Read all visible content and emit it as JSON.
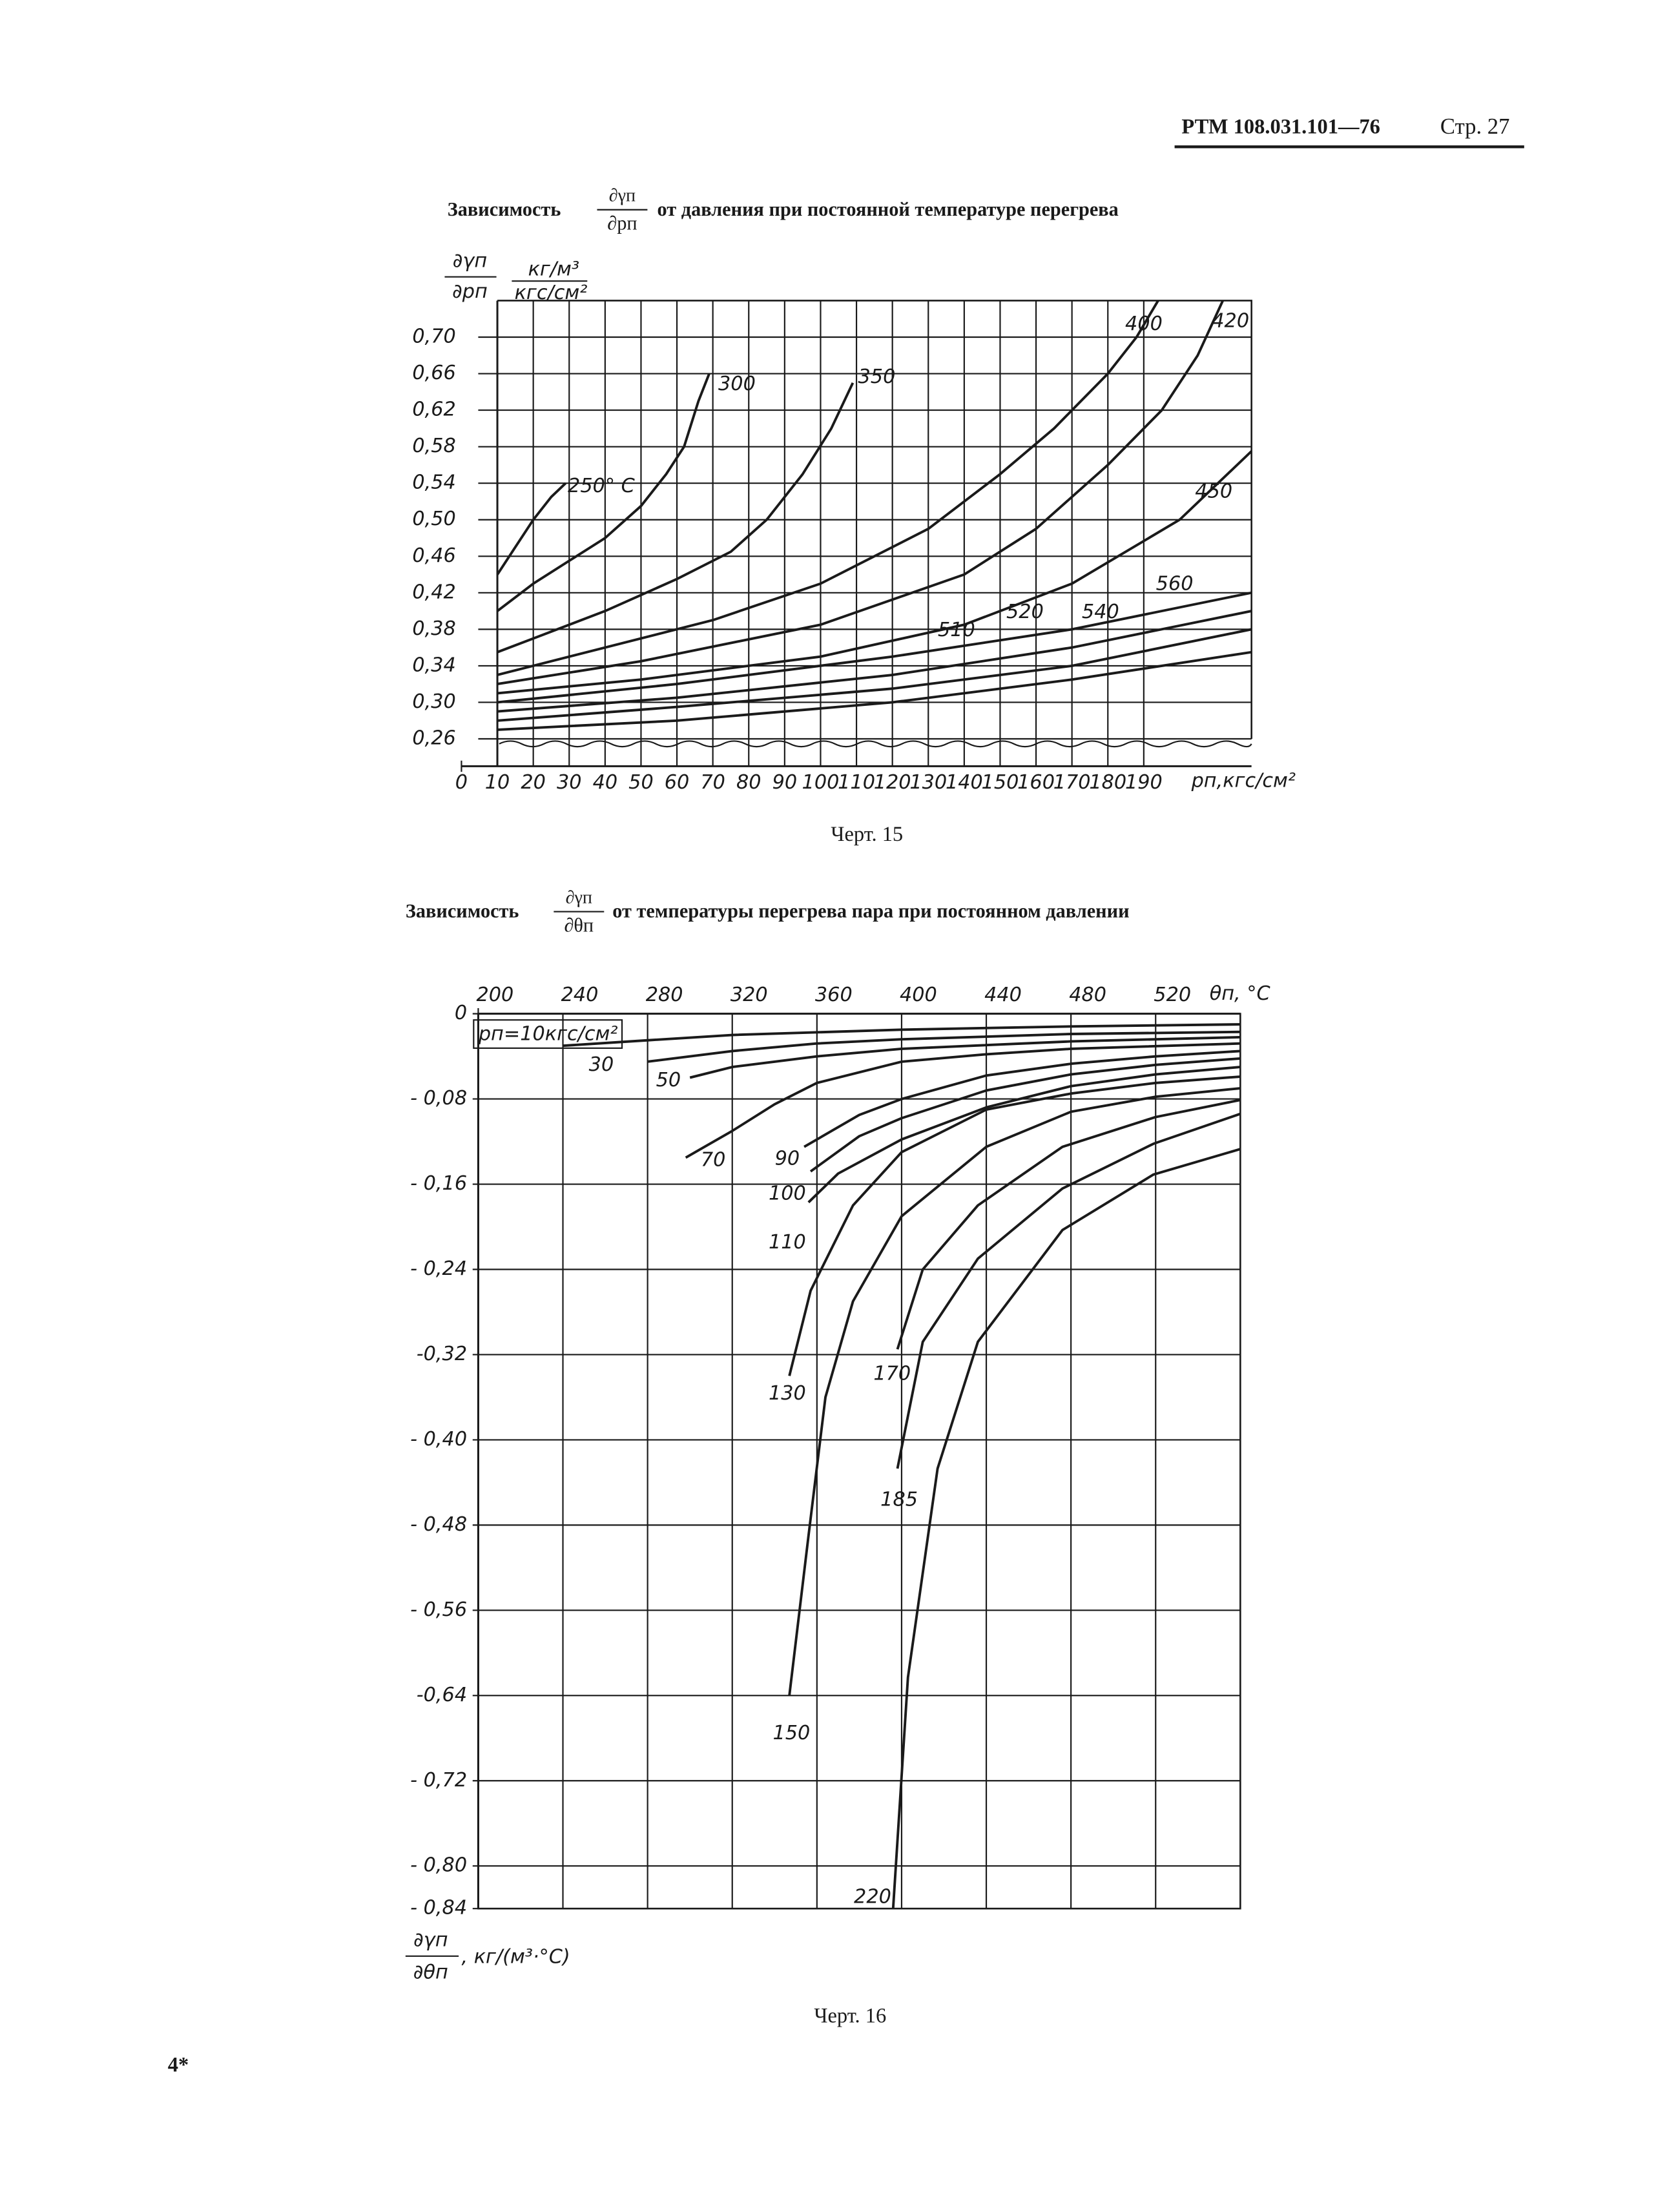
{
  "header": {
    "doc": "РТМ 108.031.101—76",
    "page": "Стр. 27"
  },
  "chart_data": [
    {
      "type": "line",
      "title": {
        "prefix": "Зависимость",
        "numerator": "∂γп",
        "denominator": "∂pп",
        "suffix": "от давления при постоянной температуре перегрева"
      },
      "y_label": {
        "numerator": "∂γп",
        "denominator": "∂pп",
        "unit_numerator": "кг/м³",
        "unit_denominator": "кгс/см²"
      },
      "x_label": "pп,кгс/см²",
      "caption": "Черт. 15",
      "color": "#1a1a1a",
      "grid": true,
      "x_axis_position": "bottom",
      "xlim": [
        0,
        220
      ],
      "xticks": [
        0,
        10,
        20,
        30,
        40,
        50,
        60,
        70,
        80,
        90,
        100,
        110,
        120,
        130,
        140,
        150,
        160,
        170,
        180,
        190
      ],
      "ylim": [
        0.23,
        0.74
      ],
      "yticks": [
        {
          "value": 0.26,
          "label": "0,26"
        },
        {
          "value": 0.3,
          "label": "0,30"
        },
        {
          "value": 0.34,
          "label": "0,34"
        },
        {
          "value": 0.38,
          "label": "0,38"
        },
        {
          "value": 0.42,
          "label": "0,42"
        },
        {
          "value": 0.46,
          "label": "0,46"
        },
        {
          "value": 0.5,
          "label": "0,50"
        },
        {
          "value": 0.54,
          "label": "0,54"
        },
        {
          "value": 0.58,
          "label": "0,58"
        },
        {
          "value": 0.62,
          "label": "0,62"
        },
        {
          "value": 0.66,
          "label": "0,66"
        },
        {
          "value": 0.7,
          "label": "0,70"
        }
      ],
      "series": [
        {
          "name": "250° C",
          "x": [
            10,
            15,
            20,
            25,
            29
          ],
          "values": [
            0.44,
            0.47,
            0.5,
            0.525,
            0.54
          ]
        },
        {
          "name": "300",
          "x": [
            10,
            20,
            30,
            40,
            50,
            57,
            62,
            66,
            69
          ],
          "values": [
            0.4,
            0.43,
            0.455,
            0.48,
            0.515,
            0.55,
            0.58,
            0.63,
            0.66
          ]
        },
        {
          "name": "350",
          "x": [
            10,
            20,
            40,
            60,
            75,
            85,
            95,
            103,
            109
          ],
          "values": [
            0.355,
            0.37,
            0.4,
            0.435,
            0.465,
            0.5,
            0.55,
            0.6,
            0.65
          ]
        },
        {
          "name": "400",
          "x": [
            10,
            40,
            70,
            100,
            130,
            150,
            165,
            180,
            188,
            194
          ],
          "values": [
            0.33,
            0.36,
            0.39,
            0.43,
            0.49,
            0.55,
            0.6,
            0.66,
            0.7,
            0.74
          ]
        },
        {
          "name": "420",
          "x": [
            10,
            50,
            100,
            140,
            160,
            180,
            195,
            205,
            212
          ],
          "values": [
            0.32,
            0.345,
            0.385,
            0.44,
            0.49,
            0.56,
            0.62,
            0.68,
            0.74
          ]
        },
        {
          "name": "450",
          "x": [
            10,
            50,
            100,
            140,
            170,
            200,
            220
          ],
          "values": [
            0.31,
            0.325,
            0.35,
            0.385,
            0.43,
            0.5,
            0.575
          ]
        },
        {
          "name": "510",
          "x": [
            10,
            60,
            120,
            170,
            220
          ],
          "values": [
            0.3,
            0.32,
            0.35,
            0.38,
            0.42
          ]
        },
        {
          "name": "520",
          "x": [
            10,
            60,
            120,
            170,
            220
          ],
          "values": [
            0.29,
            0.305,
            0.33,
            0.36,
            0.4
          ]
        },
        {
          "name": "540",
          "x": [
            10,
            60,
            120,
            170,
            220
          ],
          "values": [
            0.28,
            0.295,
            0.315,
            0.34,
            0.38
          ]
        },
        {
          "name": "560",
          "x": [
            10,
            60,
            120,
            170,
            220
          ],
          "values": [
            0.27,
            0.28,
            0.3,
            0.325,
            0.355
          ]
        }
      ]
    },
    {
      "type": "line",
      "title": {
        "prefix": "Зависимость",
        "numerator": "∂γп",
        "denominator": "∂θп",
        "suffix": "от температуры перегрева пара при постоянном давлении"
      },
      "y_label": {
        "numerator": "∂γп",
        "denominator": "∂θп",
        "unit": ", кг/(м³·°С)"
      },
      "x_label": "θп, °С",
      "caption": "Черт. 16",
      "color": "#1a1a1a",
      "grid": true,
      "x_axis_position": "top",
      "xlim": [
        200,
        560
      ],
      "xticks": [
        200,
        240,
        280,
        320,
        360,
        400,
        440,
        480,
        520
      ],
      "ylim": [
        -0.84,
        0
      ],
      "yticks": [
        0,
        {
          "value": -0.08,
          "label": "- 0,08"
        },
        {
          "value": -0.16,
          "label": "- 0,16"
        },
        {
          "value": -0.24,
          "label": "- 0,24"
        },
        {
          "value": -0.32,
          "label": "-0,32"
        },
        {
          "value": -0.4,
          "label": "- 0,40"
        },
        {
          "value": -0.48,
          "label": "- 0,48"
        },
        {
          "value": -0.56,
          "label": "- 0,56"
        },
        {
          "value": -0.64,
          "label": "-0,64"
        },
        {
          "value": -0.72,
          "label": "- 0,72"
        },
        {
          "value": -0.8,
          "label": "- 0,80"
        },
        {
          "value": -0.84,
          "label": "- 0,84"
        }
      ],
      "series": [
        {
          "name": "pп=10кгс/см²",
          "x": [
            240,
            280,
            320,
            400,
            480,
            560
          ],
          "values": [
            -0.03,
            -0.025,
            -0.02,
            -0.015,
            -0.012,
            -0.01
          ]
        },
        {
          "name": "30",
          "x": [
            280,
            320,
            360,
            400,
            480,
            560
          ],
          "values": [
            -0.045,
            -0.035,
            -0.028,
            -0.024,
            -0.019,
            -0.017
          ]
        },
        {
          "name": "50",
          "x": [
            300,
            320,
            360,
            400,
            480,
            560
          ],
          "values": [
            -0.06,
            -0.05,
            -0.04,
            -0.033,
            -0.026,
            -0.022
          ]
        },
        {
          "name": "70",
          "x": [
            298,
            320,
            340,
            360,
            400,
            440,
            480,
            560
          ],
          "values": [
            -0.135,
            -0.11,
            -0.085,
            -0.065,
            -0.045,
            -0.038,
            -0.033,
            -0.028
          ]
        },
        {
          "name": "90",
          "x": [
            354,
            380,
            400,
            440,
            480,
            520,
            560
          ],
          "values": [
            -0.125,
            -0.095,
            -0.08,
            -0.058,
            -0.047,
            -0.04,
            -0.035
          ]
        },
        {
          "name": "100",
          "x": [
            357,
            380,
            400,
            440,
            480,
            520,
            560
          ],
          "values": [
            -0.148,
            -0.115,
            -0.098,
            -0.072,
            -0.057,
            -0.048,
            -0.042
          ]
        },
        {
          "name": "110",
          "x": [
            356,
            370,
            400,
            440,
            480,
            520,
            560
          ],
          "values": [
            -0.177,
            -0.15,
            -0.118,
            -0.088,
            -0.068,
            -0.057,
            -0.05
          ]
        },
        {
          "name": "130",
          "x": [
            347,
            357,
            377,
            400,
            440,
            480,
            520,
            560
          ],
          "values": [
            -0.34,
            -0.26,
            -0.18,
            -0.13,
            -0.09,
            -0.075,
            -0.065,
            -0.059
          ]
        },
        {
          "name": "150",
          "x": [
            347,
            356,
            364,
            377,
            400,
            440,
            480,
            520,
            560
          ],
          "values": [
            -0.64,
            -0.49,
            -0.36,
            -0.27,
            -0.19,
            -0.125,
            -0.092,
            -0.078,
            -0.07
          ]
        },
        {
          "name": "170",
          "x": [
            398,
            410,
            436,
            476,
            520,
            560
          ],
          "values": [
            -0.315,
            -0.24,
            -0.18,
            -0.125,
            -0.097,
            -0.081
          ]
        },
        {
          "name": "185",
          "x": [
            398,
            410,
            436,
            476,
            519,
            560
          ],
          "values": [
            -0.427,
            -0.308,
            -0.23,
            -0.164,
            -0.122,
            -0.094
          ]
        },
        {
          "name": "220",
          "x": [
            396,
            403,
            417,
            436,
            476,
            519,
            560
          ],
          "values": [
            -0.84,
            -0.623,
            -0.427,
            -0.308,
            -0.203,
            -0.151,
            -0.127
          ]
        }
      ]
    }
  ],
  "footer": "4*"
}
